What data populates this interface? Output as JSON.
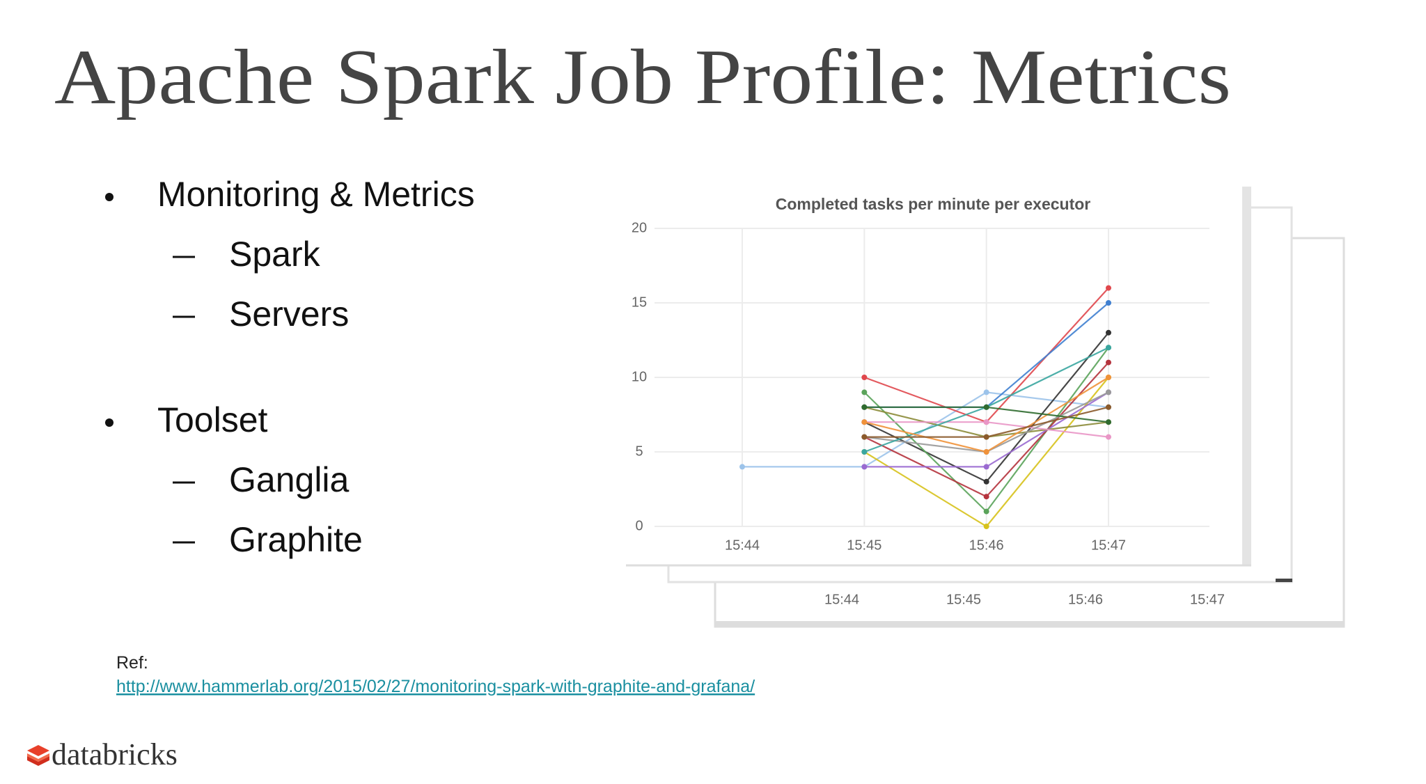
{
  "slide": {
    "title": "Apache Spark Job Profile: Metrics",
    "bullets": [
      {
        "text": "Monitoring & Metrics",
        "subitems": [
          "Spark",
          "Servers"
        ]
      },
      {
        "text": "Toolset",
        "subitems": [
          "Ganglia",
          "Graphite"
        ]
      }
    ],
    "ref_label": "Ref:",
    "ref_url": "http://www.hammerlab.org/2015/02/27/monitoring-spark-with-graphite-and-grafana/",
    "logo_text": "databricks"
  },
  "back_panel": {
    "x_labels": [
      "15:44",
      "15:45",
      "15:46",
      "15:47"
    ]
  },
  "chart_data": {
    "type": "line",
    "title": "Completed tasks per minute per executor",
    "categories": [
      "15:44",
      "15:45",
      "15:46",
      "15:47"
    ],
    "ylim": [
      0,
      20
    ],
    "yticks": [
      0,
      5,
      10,
      15,
      20
    ],
    "grid": true,
    "series": [
      {
        "color": "#9cc3ea",
        "values": [
          4,
          4,
          9,
          8
        ]
      },
      {
        "color": "#e0474c",
        "values": [
          null,
          10,
          7,
          16
        ]
      },
      {
        "color": "#3f7fd0",
        "values": [
          null,
          8,
          8,
          15
        ]
      },
      {
        "color": "#333333",
        "values": [
          null,
          7,
          3,
          13
        ]
      },
      {
        "color": "#5aa35a",
        "values": [
          null,
          9,
          1,
          12
        ]
      },
      {
        "color": "#d7c21c",
        "values": [
          null,
          5,
          0,
          10
        ]
      },
      {
        "color": "#b5333d",
        "values": [
          null,
          6,
          2,
          11
        ]
      },
      {
        "color": "#9a6ad0",
        "values": [
          null,
          4,
          4,
          9
        ]
      },
      {
        "color": "#8c8c3a",
        "values": [
          null,
          8,
          6,
          7
        ]
      },
      {
        "color": "#e996c6",
        "values": [
          null,
          7,
          7,
          6
        ]
      },
      {
        "color": "#999999",
        "values": [
          null,
          6,
          5,
          9
        ]
      },
      {
        "color": "#3aa6a0",
        "values": [
          null,
          5,
          8,
          12
        ]
      },
      {
        "color": "#f0923a",
        "values": [
          null,
          7,
          5,
          10
        ]
      },
      {
        "color": "#2f6b2f",
        "values": [
          null,
          8,
          8,
          7
        ]
      },
      {
        "color": "#8b5a2b",
        "values": [
          null,
          6,
          6,
          8
        ]
      }
    ]
  }
}
